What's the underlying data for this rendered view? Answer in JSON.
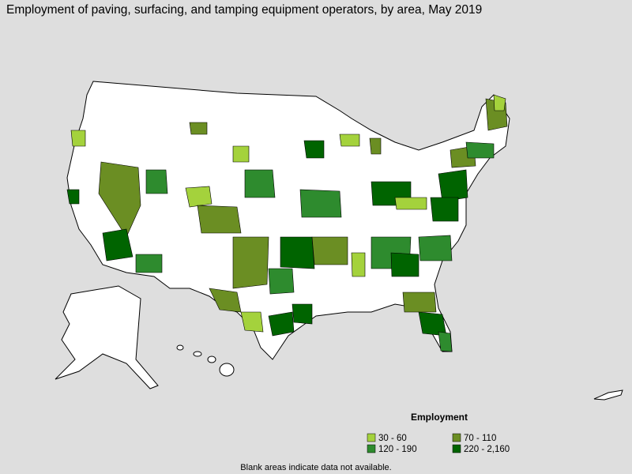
{
  "title": "Employment of paving, surfacing, and tamping equipment operators, by area, May 2019",
  "legend": {
    "title": "Employment",
    "items": [
      {
        "label": "30 - 60",
        "color": "#a4d23c"
      },
      {
        "label": "70 - 110",
        "color": "#6b8e23"
      },
      {
        "label": "120 - 190",
        "color": "#2e8b2e"
      },
      {
        "label": "220 - 2,160",
        "color": "#006400"
      }
    ]
  },
  "note": "Blank areas indicate data not available."
}
